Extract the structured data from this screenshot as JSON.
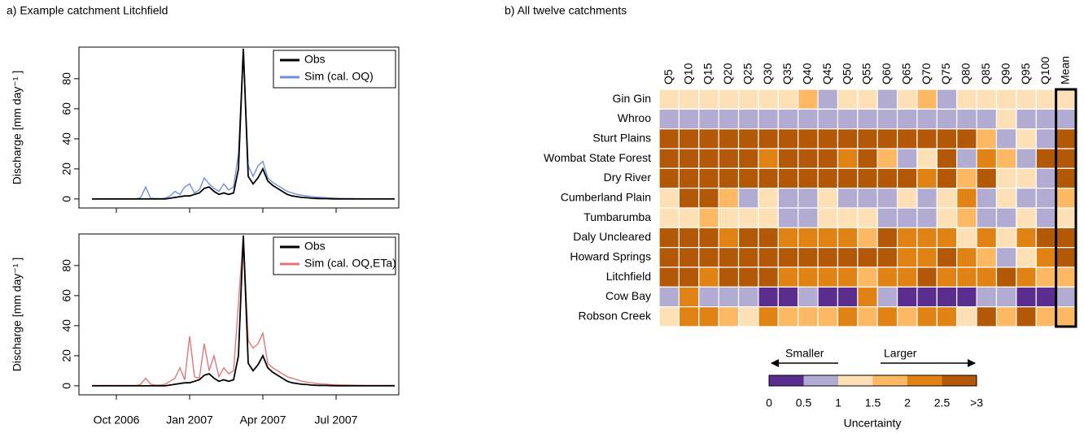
{
  "chart_data": [
    {
      "type": "line",
      "title": "a) Example catchment Litchfield",
      "y_label": "Discharge [mm day⁻¹ ]",
      "categories": [
        null,
        null,
        null,
        null,
        null,
        null,
        null,
        null,
        null,
        null,
        null,
        null,
        null,
        null,
        null,
        null,
        null,
        null,
        null,
        null,
        null,
        null,
        null,
        null,
        null,
        null,
        null,
        null,
        null,
        null,
        null,
        null,
        null,
        null,
        null,
        null,
        null,
        null,
        null,
        null,
        null,
        null,
        null,
        null,
        null,
        null,
        null,
        null,
        null,
        null,
        null,
        null,
        null,
        null,
        null,
        null,
        null,
        null,
        null,
        null,
        null,
        null,
        null
      ],
      "xticks": [
        5,
        20,
        35,
        50
      ],
      "ylim": [
        -6,
        101
      ],
      "yticks": [
        0,
        20,
        40,
        60,
        80
      ],
      "legend": "top-right",
      "series": [
        {
          "name": "Sim (cal. OQ)",
          "color": "#6f8fdc",
          "values": [
            0,
            0,
            0,
            0,
            0,
            0,
            0,
            0,
            0,
            0,
            1,
            8,
            0.5,
            0.3,
            0.2,
            0.5,
            2,
            5,
            3,
            8,
            10,
            4,
            6,
            14,
            10,
            7,
            5,
            10,
            6,
            8,
            30,
            100,
            22,
            15,
            22,
            25,
            14,
            11,
            9,
            7,
            5,
            4,
            3,
            2.5,
            2,
            1.5,
            1.2,
            1,
            0.8,
            0.6,
            0.5,
            0.4,
            0.3,
            0.3,
            0.2,
            0.2,
            0.1,
            0.1,
            0.1,
            0.1,
            0.1,
            0.1,
            0.1
          ]
        },
        {
          "name": "Obs",
          "color": "#000000",
          "values": [
            0,
            0,
            0,
            0,
            0,
            0,
            0,
            0,
            0,
            0,
            0,
            0,
            0,
            0,
            0,
            0,
            0.5,
            1,
            1.5,
            2,
            2,
            3,
            4,
            7,
            8,
            5,
            3,
            4,
            3,
            4,
            20,
            100,
            15,
            10,
            14,
            20,
            12,
            9,
            7,
            5,
            3,
            2,
            1.5,
            1,
            0.8,
            0.5,
            0.3,
            0.2,
            0.2,
            0.1,
            0,
            0,
            0,
            0,
            0,
            0,
            0,
            0,
            0,
            0,
            0,
            0,
            0
          ]
        }
      ]
    },
    {
      "type": "line",
      "y_label": "Discharge [mm day⁻¹ ]",
      "categories": [
        null,
        null,
        null,
        null,
        null,
        "Oct 2006",
        null,
        null,
        null,
        null,
        null,
        null,
        null,
        null,
        null,
        null,
        null,
        null,
        null,
        null,
        "Jan 2007",
        null,
        null,
        null,
        null,
        null,
        null,
        null,
        null,
        null,
        null,
        null,
        null,
        null,
        null,
        "Apr 2007",
        null,
        null,
        null,
        null,
        null,
        null,
        null,
        null,
        null,
        null,
        null,
        null,
        null,
        null,
        "Jul 2007",
        null,
        null,
        null,
        null,
        null,
        null,
        null,
        null,
        null,
        null,
        null,
        null
      ],
      "ylim": [
        -6,
        101
      ],
      "yticks": [
        0,
        20,
        40,
        60,
        80
      ],
      "legend": "top-right",
      "series": [
        {
          "name": "Sim (cal. OQ,ETa)",
          "color": "#e07878",
          "values": [
            0.2,
            0.2,
            0.2,
            0.2,
            0.2,
            0.2,
            0.2,
            0.2,
            0.2,
            0.2,
            1,
            5,
            1,
            0.5,
            0.5,
            1,
            3,
            5,
            12,
            4,
            33,
            6,
            5,
            28,
            10,
            20,
            6,
            12,
            8,
            10,
            55,
            100,
            30,
            25,
            28,
            35,
            15,
            12,
            10,
            8,
            6,
            5,
            4,
            3,
            2.5,
            2,
            1.5,
            1.2,
            1,
            0.8,
            0.7,
            0.6,
            0.5,
            0.5,
            0.4,
            0.4,
            0.3,
            0.3,
            0.3,
            0.3,
            0.3,
            0.3,
            0.3
          ]
        },
        {
          "name": "Obs",
          "color": "#000000",
          "values": [
            0,
            0,
            0,
            0,
            0,
            0,
            0,
            0,
            0,
            0,
            0,
            0,
            0,
            0,
            0,
            0,
            0.5,
            1,
            1.5,
            2,
            2,
            3,
            4,
            7,
            8,
            5,
            3,
            4,
            3,
            4,
            20,
            100,
            15,
            10,
            14,
            20,
            12,
            9,
            7,
            5,
            3,
            2,
            1.5,
            1,
            0.8,
            0.5,
            0.3,
            0.2,
            0.2,
            0.1,
            0,
            0,
            0,
            0,
            0,
            0,
            0,
            0,
            0,
            0,
            0,
            0,
            0
          ]
        }
      ]
    },
    {
      "type": "heatmap",
      "title": "b) All twelve catchments",
      "columns": [
        "Q5",
        "Q10",
        "Q15",
        "Q20",
        "Q25",
        "Q30",
        "Q35",
        "Q40",
        "Q45",
        "Q50",
        "Q55",
        "Q60",
        "Q65",
        "Q70",
        "Q75",
        "Q80",
        "Q85",
        "Q90",
        "Q95",
        "Q100",
        "Mean"
      ],
      "rows": [
        "Gin Gin",
        "Whroo",
        "Sturt Plains",
        "Wombat State Forest",
        "Dry River",
        "Cumberland Plain",
        "Tumbarumba",
        "Daly Uncleared",
        "Howard Springs",
        "Litchfield",
        "Cow Bay",
        "Robson Creek"
      ],
      "highlight_column": 20,
      "values": [
        [
          1.25,
          1.25,
          1.25,
          1.25,
          1.25,
          1.25,
          1.25,
          1.75,
          0.75,
          1.25,
          1.25,
          0.75,
          1.25,
          1.75,
          0.75,
          1.25,
          1.25,
          1.25,
          1.25,
          1.25,
          1.25
        ],
        [
          0.75,
          0.75,
          0.75,
          0.75,
          0.75,
          0.75,
          0.75,
          0.75,
          0.75,
          0.75,
          0.75,
          0.75,
          0.75,
          0.75,
          0.75,
          0.75,
          0.75,
          1.25,
          0.75,
          0.75,
          0.75
        ],
        [
          3,
          3,
          3,
          3,
          3,
          3,
          3,
          3,
          3,
          3,
          3,
          3,
          3,
          3,
          3,
          3,
          1.75,
          0.75,
          1.25,
          0.75,
          3
        ],
        [
          3,
          3,
          3,
          3,
          3,
          2.25,
          3,
          3,
          3,
          2.25,
          3,
          1.75,
          0.75,
          1.25,
          3,
          0.75,
          2.25,
          1.75,
          0.75,
          3,
          3
        ],
        [
          3,
          3,
          3,
          3,
          3,
          3,
          3,
          3,
          3,
          3,
          3,
          3,
          3,
          2.25,
          3,
          1.75,
          3,
          1.25,
          1.25,
          0.75,
          3
        ],
        [
          1.25,
          3,
          3,
          1.75,
          0.75,
          1.25,
          0.75,
          0.75,
          1.25,
          0.75,
          0.75,
          0.75,
          1.25,
          0.75,
          1.25,
          2.25,
          0.75,
          1.25,
          0.75,
          0.75,
          1.75
        ],
        [
          1.25,
          1.25,
          1.75,
          1.25,
          1.25,
          1.25,
          0.75,
          0.75,
          1.25,
          1.25,
          1.25,
          0.75,
          0.75,
          0.75,
          1.25,
          1.75,
          0.75,
          0.75,
          1.25,
          0.75,
          1.25
        ],
        [
          3,
          3,
          3,
          2.25,
          3,
          3,
          2.25,
          2.25,
          2.25,
          2.25,
          1.75,
          3,
          2.25,
          2.25,
          2.25,
          1.25,
          2.25,
          1.25,
          2.25,
          3,
          3
        ],
        [
          3,
          3,
          3,
          3,
          3,
          3,
          3,
          3,
          3,
          3,
          3,
          3,
          2.25,
          2.25,
          3,
          2.25,
          1.75,
          0.75,
          1.25,
          2.25,
          3
        ],
        [
          3,
          3,
          2.25,
          3,
          3,
          3,
          2.25,
          2.25,
          2.25,
          2.25,
          1.75,
          2.25,
          2.25,
          3,
          2.25,
          2.25,
          2.25,
          3,
          2.25,
          1.75,
          1.75
        ],
        [
          0.75,
          2.25,
          0.75,
          0.75,
          0.75,
          0.25,
          0.25,
          0.75,
          0.25,
          0.25,
          2.25,
          0.75,
          0.25,
          0.25,
          0.25,
          0.25,
          0.75,
          0.75,
          0.25,
          0.25,
          0.75
        ],
        [
          1.25,
          2.25,
          2.25,
          1.75,
          1.25,
          2.25,
          1.75,
          1.75,
          1.75,
          2.25,
          1.75,
          2.25,
          1.75,
          2.25,
          2.25,
          1.25,
          3,
          1.75,
          3,
          1.75,
          1.75
        ]
      ],
      "colorbar": {
        "title": "Uncertainty",
        "left_label": "Smaller",
        "right_label": "Larger",
        "bins": [
          0,
          0.5,
          1,
          1.5,
          2,
          2.5,
          {
            "value": 3,
            "label": ">3"
          }
        ],
        "colors": [
          "#5b2d8e",
          "#b2abd2",
          "#fee0b6",
          "#fdb863",
          "#e08214",
          "#b35806"
        ]
      }
    }
  ]
}
